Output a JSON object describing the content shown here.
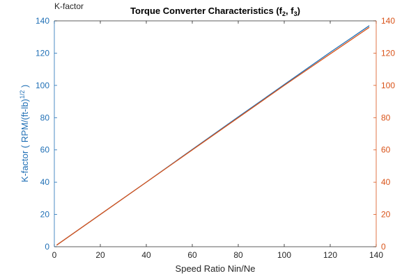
{
  "chart_data": {
    "type": "line",
    "title": "Torque Converter Characteristics (f",
    "title_sub1": "2",
    "title_sep": ", f",
    "title_sub2": "3",
    "title_end": ")",
    "corner_label": "K-factor",
    "xlabel": "Speed Ratio Nin/Ne",
    "ylabel_left": "K-factor ( RPM/(ft-lb)",
    "ylabel_left_sup": "1/2",
    "ylabel_left_end": " )",
    "xlim": [
      0,
      140
    ],
    "ylim_left": [
      0,
      140
    ],
    "ylim_right": [
      0,
      140
    ],
    "x_ticks": [
      "0",
      "20",
      "40",
      "60",
      "80",
      "100",
      "120",
      "140"
    ],
    "y_ticks_left": [
      "0",
      "20",
      "40",
      "60",
      "80",
      "100",
      "120",
      "140"
    ],
    "y_ticks_right": [
      "0",
      "20",
      "40",
      "60",
      "80",
      "100",
      "120",
      "140"
    ],
    "grid": false,
    "left_axis_color": "#1f6fb5",
    "right_axis_color": "#d95319",
    "series": [
      {
        "axis": "left",
        "color": "#1f6fb5",
        "x": [
          1,
          20,
          40,
          60,
          80,
          100,
          120,
          137
        ],
        "values": [
          1,
          20,
          40,
          60.3,
          80.5,
          100.5,
          120.5,
          137
        ]
      },
      {
        "axis": "right",
        "color": "#d95319",
        "x": [
          1,
          20,
          40,
          60,
          80,
          100,
          120,
          137
        ],
        "values": [
          1,
          20,
          40,
          60,
          80,
          100,
          119.5,
          136
        ]
      }
    ]
  }
}
